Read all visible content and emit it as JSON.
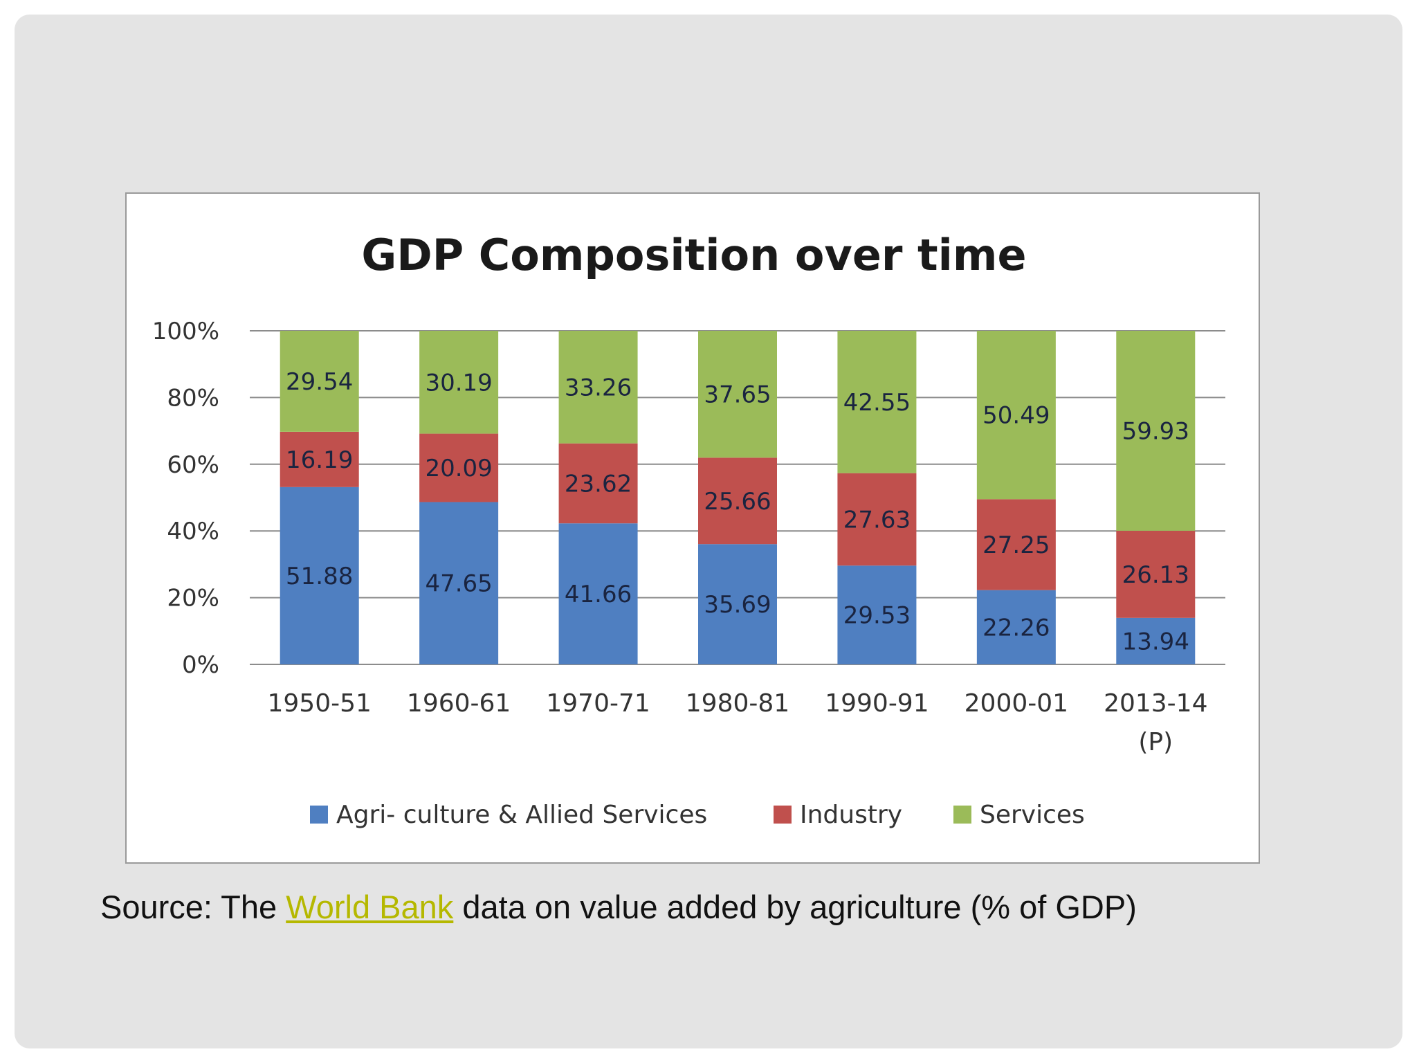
{
  "source": {
    "prefix": "Source: The ",
    "link_text": "World Bank",
    "suffix": " data on value added by agriculture (% of GDP)"
  },
  "colors": {
    "agri": "#4f7fc1",
    "industry": "#c0504d",
    "services": "#9bbb59",
    "link": "#b5b800"
  },
  "chart_data": {
    "type": "bar",
    "stacked": true,
    "title": "GDP Composition over time",
    "categories": [
      [
        "1950-51"
      ],
      [
        "1960-61"
      ],
      [
        "1970-71"
      ],
      [
        "1980-81"
      ],
      [
        "1990-91"
      ],
      [
        "2000-01"
      ],
      [
        "2013-14",
        "(P)"
      ]
    ],
    "series": [
      {
        "name": "Agri- culture & Allied Services",
        "color": "#4f7fc1",
        "values": [
          51.88,
          47.65,
          41.66,
          35.69,
          29.53,
          22.26,
          13.94
        ]
      },
      {
        "name": "Industry",
        "color": "#c0504d",
        "values": [
          16.19,
          20.09,
          23.62,
          25.66,
          27.63,
          27.25,
          26.13
        ]
      },
      {
        "name": "Services",
        "color": "#9bbb59",
        "values": [
          29.54,
          30.19,
          33.26,
          37.65,
          42.55,
          50.49,
          59.93
        ]
      }
    ],
    "yticks": [
      "0%",
      "20%",
      "40%",
      "60%",
      "80%",
      "100%"
    ],
    "ylim": [
      0,
      100
    ],
    "grid": true,
    "legend": "bottom"
  }
}
